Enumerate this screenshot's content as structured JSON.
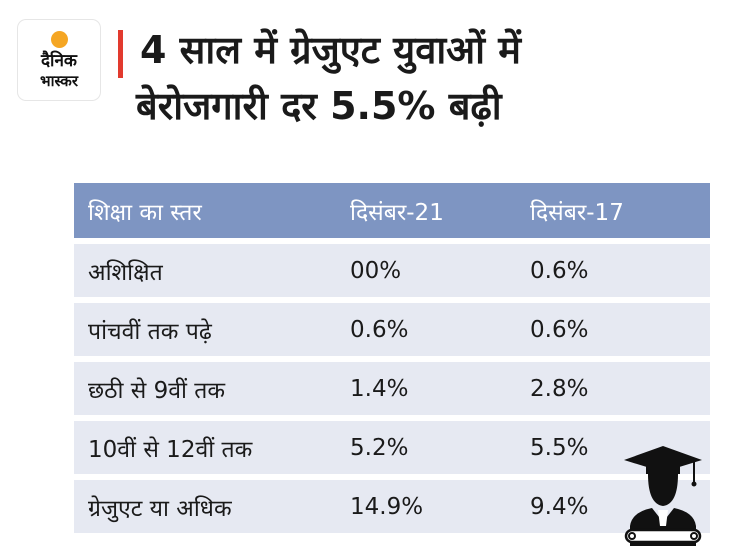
{
  "brand": {
    "line1": "दैनिक",
    "line2": "भास्कर",
    "accent": "#e23a2e",
    "sun": "#f5a623"
  },
  "headline": {
    "line1": "4 साल में ग्रेजुएट युवाओं में",
    "line2": "बेरोजगारी दर 5.5% बढ़ी"
  },
  "chart_data": {
    "type": "table",
    "title": "4 साल में ग्रेजुएट युवाओं में बेरोजगारी दर 5.5% बढ़ी",
    "columns": [
      "शिक्षा का स्तर",
      "दिसंबर-21",
      "दिसंबर-17"
    ],
    "rows": [
      [
        "अशिक्षित",
        "00%",
        "0.6%"
      ],
      [
        "पांचवीं तक पढ़े",
        "0.6%",
        "0.6%"
      ],
      [
        "छठी से 9वीं तक",
        "1.4%",
        "2.8%"
      ],
      [
        "10वीं से 12वीं तक",
        "5.2%",
        "5.5%"
      ],
      [
        "ग्रेजुएट या अधिक",
        "14.9%",
        "9.4%"
      ]
    ],
    "header_color": "#7e95c2",
    "row_color": "#e6e9f2"
  },
  "decor": {
    "graduate": "graduate-icon"
  }
}
